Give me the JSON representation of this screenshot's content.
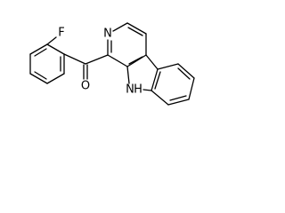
{
  "atoms": {
    "fluorine": "F",
    "pyridine_nitrogen": "N",
    "carbonyl_oxygen": "O",
    "indole_nitrogen": "N",
    "indole_hydrogen": "H"
  }
}
